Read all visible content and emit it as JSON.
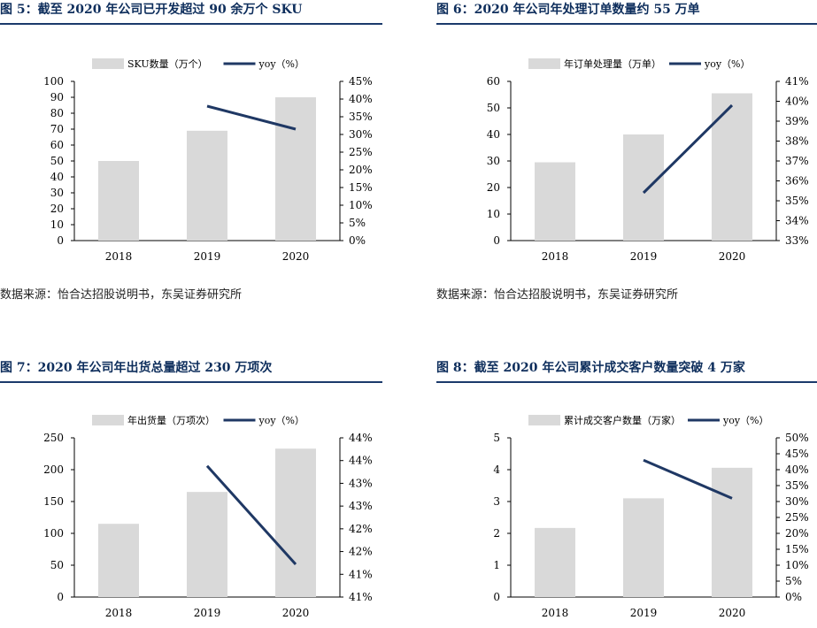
{
  "panels": [
    {
      "title": "图 5：截至 2020 年公司已开发超过 90 余万个 SKU",
      "source": "数据来源：怡合达招股说明书，东吴证券研究所",
      "chart_data": {
        "type": "bar",
        "categories": [
          "2018",
          "2019",
          "2020"
        ],
        "series": [
          {
            "name": "SKU数量（万个）",
            "type": "bar",
            "axis": "left",
            "values": [
              50,
              69,
              90
            ],
            "color": "#d9d9d9"
          },
          {
            "name": "yoy（%）",
            "type": "line",
            "axis": "right",
            "values": [
              null,
              38,
              31.5
            ],
            "color": "#1f3864"
          }
        ],
        "y_left": {
          "min": 0,
          "max": 100,
          "step": 10,
          "ticks": [
            "0",
            "10",
            "20",
            "30",
            "40",
            "50",
            "60",
            "70",
            "80",
            "90",
            "100"
          ]
        },
        "y_right": {
          "min": 0,
          "max": 45,
          "ticks": [
            "0%",
            "5%",
            "10%",
            "15%",
            "20%",
            "25%",
            "30%",
            "35%",
            "40%",
            "45%"
          ]
        },
        "legend_position": "top"
      }
    },
    {
      "title": "图 6：2020 年公司年处理订单数量约 55 万单",
      "source": "数据来源：怡合达招股说明书，东吴证券研究所",
      "chart_data": {
        "type": "bar",
        "categories": [
          "2018",
          "2019",
          "2020"
        ],
        "series": [
          {
            "name": "年订单处理量（万单）",
            "type": "bar",
            "axis": "left",
            "values": [
              29.5,
              40,
              55.5
            ],
            "color": "#d9d9d9"
          },
          {
            "name": "yoy（%）",
            "type": "line",
            "axis": "right",
            "values": [
              null,
              35.4,
              39.8
            ],
            "color": "#1f3864"
          }
        ],
        "y_left": {
          "min": 0,
          "max": 60,
          "ticks": [
            "0",
            "10",
            "20",
            "30",
            "40",
            "50",
            "60"
          ]
        },
        "y_right": {
          "min": 33,
          "max": 41,
          "ticks": [
            "33%",
            "34%",
            "35%",
            "36%",
            "37%",
            "38%",
            "39%",
            "40%",
            "41%"
          ]
        },
        "legend_position": "top"
      }
    },
    {
      "title": "图 7：2020 年公司年出货总量超过 230 万项次",
      "source": "",
      "chart_data": {
        "type": "bar",
        "categories": [
          "2018",
          "2019",
          "2020"
        ],
        "series": [
          {
            "name": "年出货量（万项次）",
            "type": "bar",
            "axis": "left",
            "values": [
              115,
              165,
              233
            ],
            "color": "#d9d9d9"
          },
          {
            "name": "yoy（%）",
            "type": "line",
            "axis": "right",
            "values": [
              null,
              43.6,
              41.5
            ],
            "color": "#1f3864"
          }
        ],
        "y_left": {
          "min": 0,
          "max": 250,
          "ticks": [
            "0",
            "50",
            "100",
            "150",
            "200",
            "250"
          ]
        },
        "y_right": {
          "min": 40.8,
          "max": 44.2,
          "ticks": [
            "41%",
            "41%",
            "42%",
            "42%",
            "43%",
            "43%",
            "44%",
            "44%"
          ]
        },
        "legend_position": "top"
      }
    },
    {
      "title": "图 8：截至 2020 年公司累计成交客户数量突破 4 万家",
      "source": "",
      "chart_data": {
        "type": "bar",
        "categories": [
          "2018",
          "2019",
          "2020"
        ],
        "series": [
          {
            "name": "累计成交客户数量（万家）",
            "type": "bar",
            "axis": "left",
            "values": [
              2.17,
              3.1,
              4.06
            ],
            "color": "#d9d9d9"
          },
          {
            "name": "yoy（%）",
            "type": "line",
            "axis": "right",
            "values": [
              null,
              43,
              31
            ],
            "color": "#1f3864"
          }
        ],
        "y_left": {
          "min": 0,
          "max": 5,
          "ticks": [
            "0",
            "1",
            "2",
            "3",
            "4",
            "5"
          ]
        },
        "y_right": {
          "min": 0,
          "max": 50,
          "ticks": [
            "0%",
            "5%",
            "10%",
            "15%",
            "20%",
            "25%",
            "30%",
            "35%",
            "40%",
            "45%",
            "50%"
          ]
        },
        "legend_position": "top"
      }
    }
  ]
}
